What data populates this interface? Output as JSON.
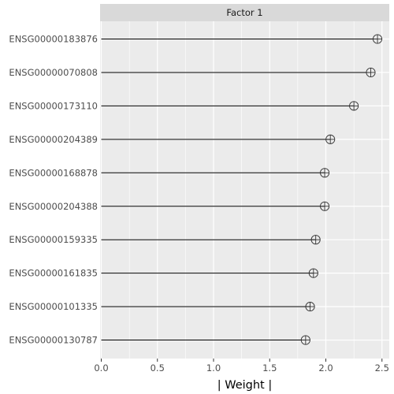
{
  "chart_data": {
    "type": "lollipop",
    "facet_title": "Factor 1",
    "categories": [
      "ENSG00000183876",
      "ENSG00000070808",
      "ENSG00000173110",
      "ENSG00000204389",
      "ENSG00000168878",
      "ENSG00000204388",
      "ENSG00000159335",
      "ENSG00000161835",
      "ENSG00000101335",
      "ENSG00000130787"
    ],
    "values": [
      2.46,
      2.4,
      2.25,
      2.04,
      1.99,
      1.99,
      1.91,
      1.89,
      1.86,
      1.82
    ],
    "xlabel": "| Weight |",
    "xlim": [
      0,
      2.55
    ],
    "xticks": [
      "0.0",
      "0.5",
      "1.0",
      "1.5",
      "2.0",
      "2.5"
    ],
    "xtick_values": [
      0,
      0.5,
      1.0,
      1.5,
      2.0,
      2.5
    ],
    "grid": true,
    "colors": {
      "panel_bg": "#ebebeb",
      "strip_bg": "#d9d9d9",
      "grid": "#ffffff",
      "segment": "#000000",
      "point_stroke": "#333333"
    }
  }
}
